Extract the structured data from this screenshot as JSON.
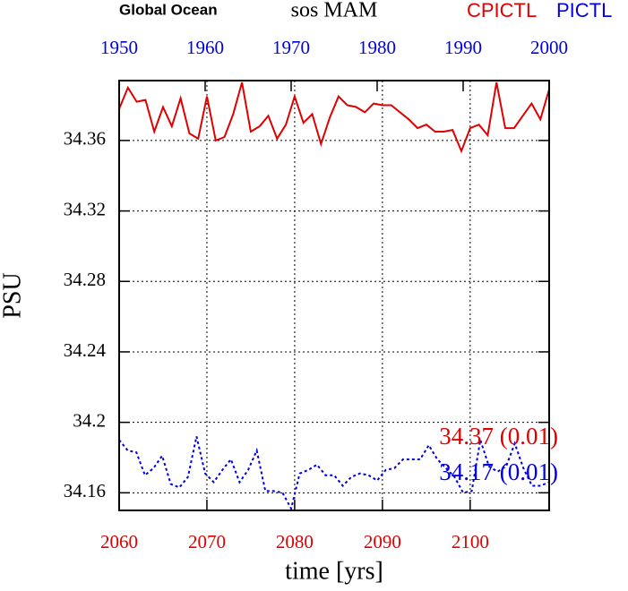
{
  "chart_data": {
    "type": "line",
    "title": "sos MAM",
    "subtitle": "Global Ocean",
    "ylabel": "PSU",
    "xlabel": "time [yrs]",
    "xlim": [
      2060,
      2109
    ],
    "xticks": [
      2060,
      2070,
      2080,
      2090,
      2100
    ],
    "x2lim": [
      1950,
      2000
    ],
    "x2ticks": [
      1950,
      1960,
      1970,
      1980,
      1990,
      2000
    ],
    "ylim": [
      34.15,
      34.394
    ],
    "yticks": [
      34.16,
      34.2,
      34.24,
      34.28,
      34.32,
      34.36
    ],
    "grid": true,
    "series": [
      {
        "name": "CPICTL",
        "color": "#e00000",
        "axis": "x",
        "x": [
          2060,
          2061,
          2062,
          2063,
          2064,
          2065,
          2066,
          2067,
          2068,
          2069,
          2070,
          2071,
          2072,
          2073,
          2074,
          2075,
          2076,
          2077,
          2078,
          2079,
          2080,
          2081,
          2082,
          2083,
          2084,
          2085,
          2086,
          2087,
          2088,
          2089,
          2090,
          2091,
          2092,
          2093,
          2094,
          2095,
          2096,
          2097,
          2098,
          2099,
          2100,
          2101,
          2102,
          2103,
          2104,
          2105,
          2106,
          2107,
          2108,
          2109
        ],
        "values": [
          34.378,
          34.39,
          34.382,
          34.383,
          34.365,
          34.379,
          34.368,
          34.384,
          34.364,
          34.361,
          34.385,
          34.36,
          34.362,
          34.375,
          34.393,
          34.365,
          34.368,
          34.374,
          34.361,
          34.369,
          34.385,
          34.37,
          34.375,
          34.358,
          34.373,
          34.385,
          34.38,
          34.379,
          34.376,
          34.381,
          34.38,
          34.38,
          34.376,
          34.372,
          34.367,
          34.369,
          34.365,
          34.365,
          34.366,
          34.354,
          34.367,
          34.369,
          34.363,
          34.393,
          34.367,
          34.367,
          34.374,
          34.381,
          34.372,
          34.389
        ],
        "annotation": "34.37 (0.01)"
      },
      {
        "name": "PICTL",
        "color": "#0000e0",
        "axis": "x2",
        "dashed": true,
        "x": [
          1950,
          1951,
          1952,
          1953,
          1954,
          1955,
          1956,
          1957,
          1958,
          1959,
          1960,
          1961,
          1962,
          1963,
          1964,
          1965,
          1966,
          1967,
          1968,
          1969,
          1970,
          1971,
          1972,
          1973,
          1974,
          1975,
          1976,
          1977,
          1978,
          1979,
          1980,
          1981,
          1982,
          1983,
          1984,
          1985,
          1986,
          1987,
          1988,
          1989,
          1990,
          1991,
          1992,
          1993,
          1994,
          1995,
          1996,
          1997,
          1998,
          1999,
          2000
        ],
        "values": [
          34.19,
          34.184,
          34.183,
          34.17,
          34.174,
          34.181,
          34.165,
          34.163,
          34.169,
          34.192,
          34.171,
          34.166,
          34.173,
          34.179,
          34.166,
          34.173,
          34.184,
          34.161,
          34.161,
          34.16,
          34.151,
          34.171,
          34.173,
          34.176,
          34.17,
          34.17,
          34.164,
          34.169,
          34.171,
          34.17,
          34.167,
          34.173,
          34.174,
          34.179,
          34.179,
          34.179,
          34.187,
          34.179,
          34.174,
          34.169,
          34.16,
          34.161,
          34.19,
          34.175,
          34.172,
          34.175,
          34.188,
          34.174,
          34.164,
          34.164,
          34.166
        ],
        "annotation": "34.17 (0.01)"
      }
    ]
  }
}
